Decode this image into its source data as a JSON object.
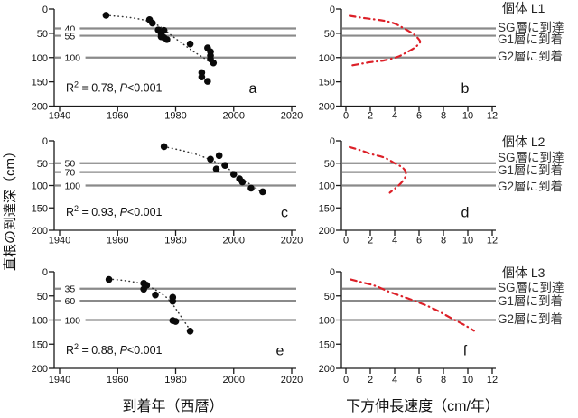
{
  "colors": {
    "background": "#ffffff",
    "point": "#0a0a0a",
    "trend": "#333333",
    "layer_line": "#8a8a8a",
    "rate_curve": "#dc2028",
    "axis": "#1a1a1a",
    "text": "#111111"
  },
  "chart_data": {
    "type": "scatter",
    "axes": {
      "left_x": {
        "label": "到着年（西暦）",
        "range": [
          1940,
          2020
        ],
        "ticks": [
          1940,
          1960,
          1980,
          2000,
          2020
        ]
      },
      "right_x": {
        "label": "下方伸長速度（cm/年）",
        "range": [
          0,
          12
        ],
        "ticks": [
          0,
          2,
          4,
          6,
          8,
          10,
          12
        ]
      },
      "y": {
        "label": "直根の到達深（cm）",
        "range": [
          0,
          200
        ],
        "ticks": [
          0,
          50,
          100,
          150,
          200
        ],
        "inverted": true
      }
    },
    "rows": [
      {
        "individual": "個体 L1",
        "layer_labels": [
          {
            "text": "SG層に到達",
            "depth": 40
          },
          {
            "text": "G1層に到着",
            "depth": 55
          },
          {
            "text": "G2層に到着",
            "depth": 100
          }
        ],
        "scatter": {
          "panel": "a",
          "annotation_parts": [
            "R",
            "2",
            " = 0.78, ",
            "P",
            "<0.001"
          ],
          "hlines": [
            {
              "depth": 40,
              "label": "40"
            },
            {
              "depth": 55,
              "label": "55"
            },
            {
              "depth": 100,
              "label": "100"
            }
          ],
          "points": [
            [
              1956,
              13
            ],
            [
              1971,
              22
            ],
            [
              1972,
              29
            ],
            [
              1974,
              43
            ],
            [
              1976,
              44
            ],
            [
              1975,
              51
            ],
            [
              1975,
              57
            ],
            [
              1976,
              59
            ],
            [
              1977,
              63
            ],
            [
              1985,
              72
            ],
            [
              1991,
              80
            ],
            [
              1992,
              88
            ],
            [
              1992,
              96
            ],
            [
              1992,
              103
            ],
            [
              1993,
              111
            ],
            [
              1989,
              131
            ],
            [
              1989,
              140
            ],
            [
              1991,
              149
            ]
          ],
          "trend": [
            [
              1956,
              13
            ],
            [
              1962,
              16
            ],
            [
              1967,
              20
            ],
            [
              1971,
              26
            ],
            [
              1974,
              34
            ],
            [
              1977,
              47
            ],
            [
              1980,
              61
            ],
            [
              1983,
              74
            ],
            [
              1986,
              87
            ],
            [
              1989,
              98
            ],
            [
              1991,
              106
            ],
            [
              1993,
              114
            ]
          ]
        },
        "rate": {
          "panel": "b",
          "hline_depths": [
            40,
            55,
            100
          ],
          "curve": [
            [
              0.3,
              14
            ],
            [
              1.6,
              19
            ],
            [
              3.1,
              24
            ],
            [
              4.0,
              30
            ],
            [
              4.7,
              39
            ],
            [
              5.5,
              51
            ],
            [
              6.0,
              63
            ],
            [
              6.05,
              70
            ],
            [
              5.5,
              82
            ],
            [
              4.7,
              93
            ],
            [
              4.2,
              99
            ],
            [
              3.1,
              106
            ],
            [
              1.9,
              110
            ],
            [
              0.3,
              117
            ]
          ]
        }
      },
      {
        "individual": "個体 L2",
        "layer_labels": [
          {
            "text": "SG層に到達",
            "depth": 50
          },
          {
            "text": "G1層に到着",
            "depth": 70
          },
          {
            "text": "G2層に到着",
            "depth": 100
          }
        ],
        "scatter": {
          "panel": "c",
          "annotation_parts": [
            "R",
            "2",
            " = 0.93, ",
            "P",
            "<0.001"
          ],
          "hlines": [
            {
              "depth": 50,
              "label": "50"
            },
            {
              "depth": 70,
              "label": "70"
            },
            {
              "depth": 100,
              "label": "100"
            }
          ],
          "points": [
            [
              1976,
              13
            ],
            [
              1992,
              41
            ],
            [
              1995,
              33
            ],
            [
              1997,
              55
            ],
            [
              1994,
              63
            ],
            [
              2000,
              75
            ],
            [
              2002,
              85
            ],
            [
              2003,
              92
            ],
            [
              2006,
              106
            ],
            [
              2010,
              114
            ]
          ],
          "trend": [
            [
              1976,
              13
            ],
            [
              1981,
              20
            ],
            [
              1986,
              28
            ],
            [
              1990,
              37
            ],
            [
              1994,
              48
            ],
            [
              1998,
              62
            ],
            [
              2001,
              76
            ],
            [
              2004,
              90
            ],
            [
              2007,
              103
            ],
            [
              2009,
              112
            ]
          ]
        },
        "rate": {
          "panel": "d",
          "hline_depths": [
            50,
            70,
            100
          ],
          "curve": [
            [
              0.3,
              14
            ],
            [
              1.2,
              21
            ],
            [
              2.0,
              29
            ],
            [
              3.1,
              37
            ],
            [
              4.0,
              50
            ],
            [
              4.6,
              59
            ],
            [
              4.9,
              69
            ],
            [
              4.85,
              82
            ],
            [
              4.5,
              95
            ],
            [
              4.1,
              105
            ],
            [
              3.6,
              116
            ]
          ]
        }
      },
      {
        "individual": "個体 L3",
        "layer_labels": [
          {
            "text": "SG層に到達",
            "depth": 35
          },
          {
            "text": "G1層に到着",
            "depth": 60
          },
          {
            "text": "G2層に到着",
            "depth": 100
          }
        ],
        "scatter": {
          "panel": "e",
          "annotation_parts": [
            "R",
            "2",
            " = 0.88, ",
            "P",
            "<0.001"
          ],
          "hlines": [
            {
              "depth": 35,
              "label": "35"
            },
            {
              "depth": 60,
              "label": "60"
            },
            {
              "depth": 100,
              "label": "100"
            }
          ],
          "points": [
            [
              1957,
              16
            ],
            [
              1969,
              24
            ],
            [
              1970,
              28
            ],
            [
              1969,
              36
            ],
            [
              1973,
              48
            ],
            [
              1979,
              53
            ],
            [
              1979,
              61
            ],
            [
              1979,
              101
            ],
            [
              1980,
              103
            ],
            [
              1985,
              123
            ]
          ],
          "trend": [
            [
              1957,
              15
            ],
            [
              1962,
              18
            ],
            [
              1967,
              23
            ],
            [
              1971,
              31
            ],
            [
              1974,
              41
            ],
            [
              1977,
              54
            ],
            [
              1979,
              68
            ],
            [
              1981,
              85
            ],
            [
              1983,
              103
            ],
            [
              1985,
              121
            ]
          ]
        },
        "rate": {
          "panel": "f",
          "hline_depths": [
            35,
            60,
            100
          ],
          "curve": [
            [
              0.4,
              16
            ],
            [
              1.5,
              23
            ],
            [
              2.5,
              30
            ],
            [
              3.5,
              41
            ],
            [
              4.5,
              50
            ],
            [
              5.6,
              60
            ],
            [
              6.5,
              69
            ],
            [
              7.4,
              79
            ],
            [
              8.7,
              97
            ],
            [
              9.7,
              110
            ],
            [
              10.5,
              122
            ]
          ]
        }
      }
    ]
  }
}
